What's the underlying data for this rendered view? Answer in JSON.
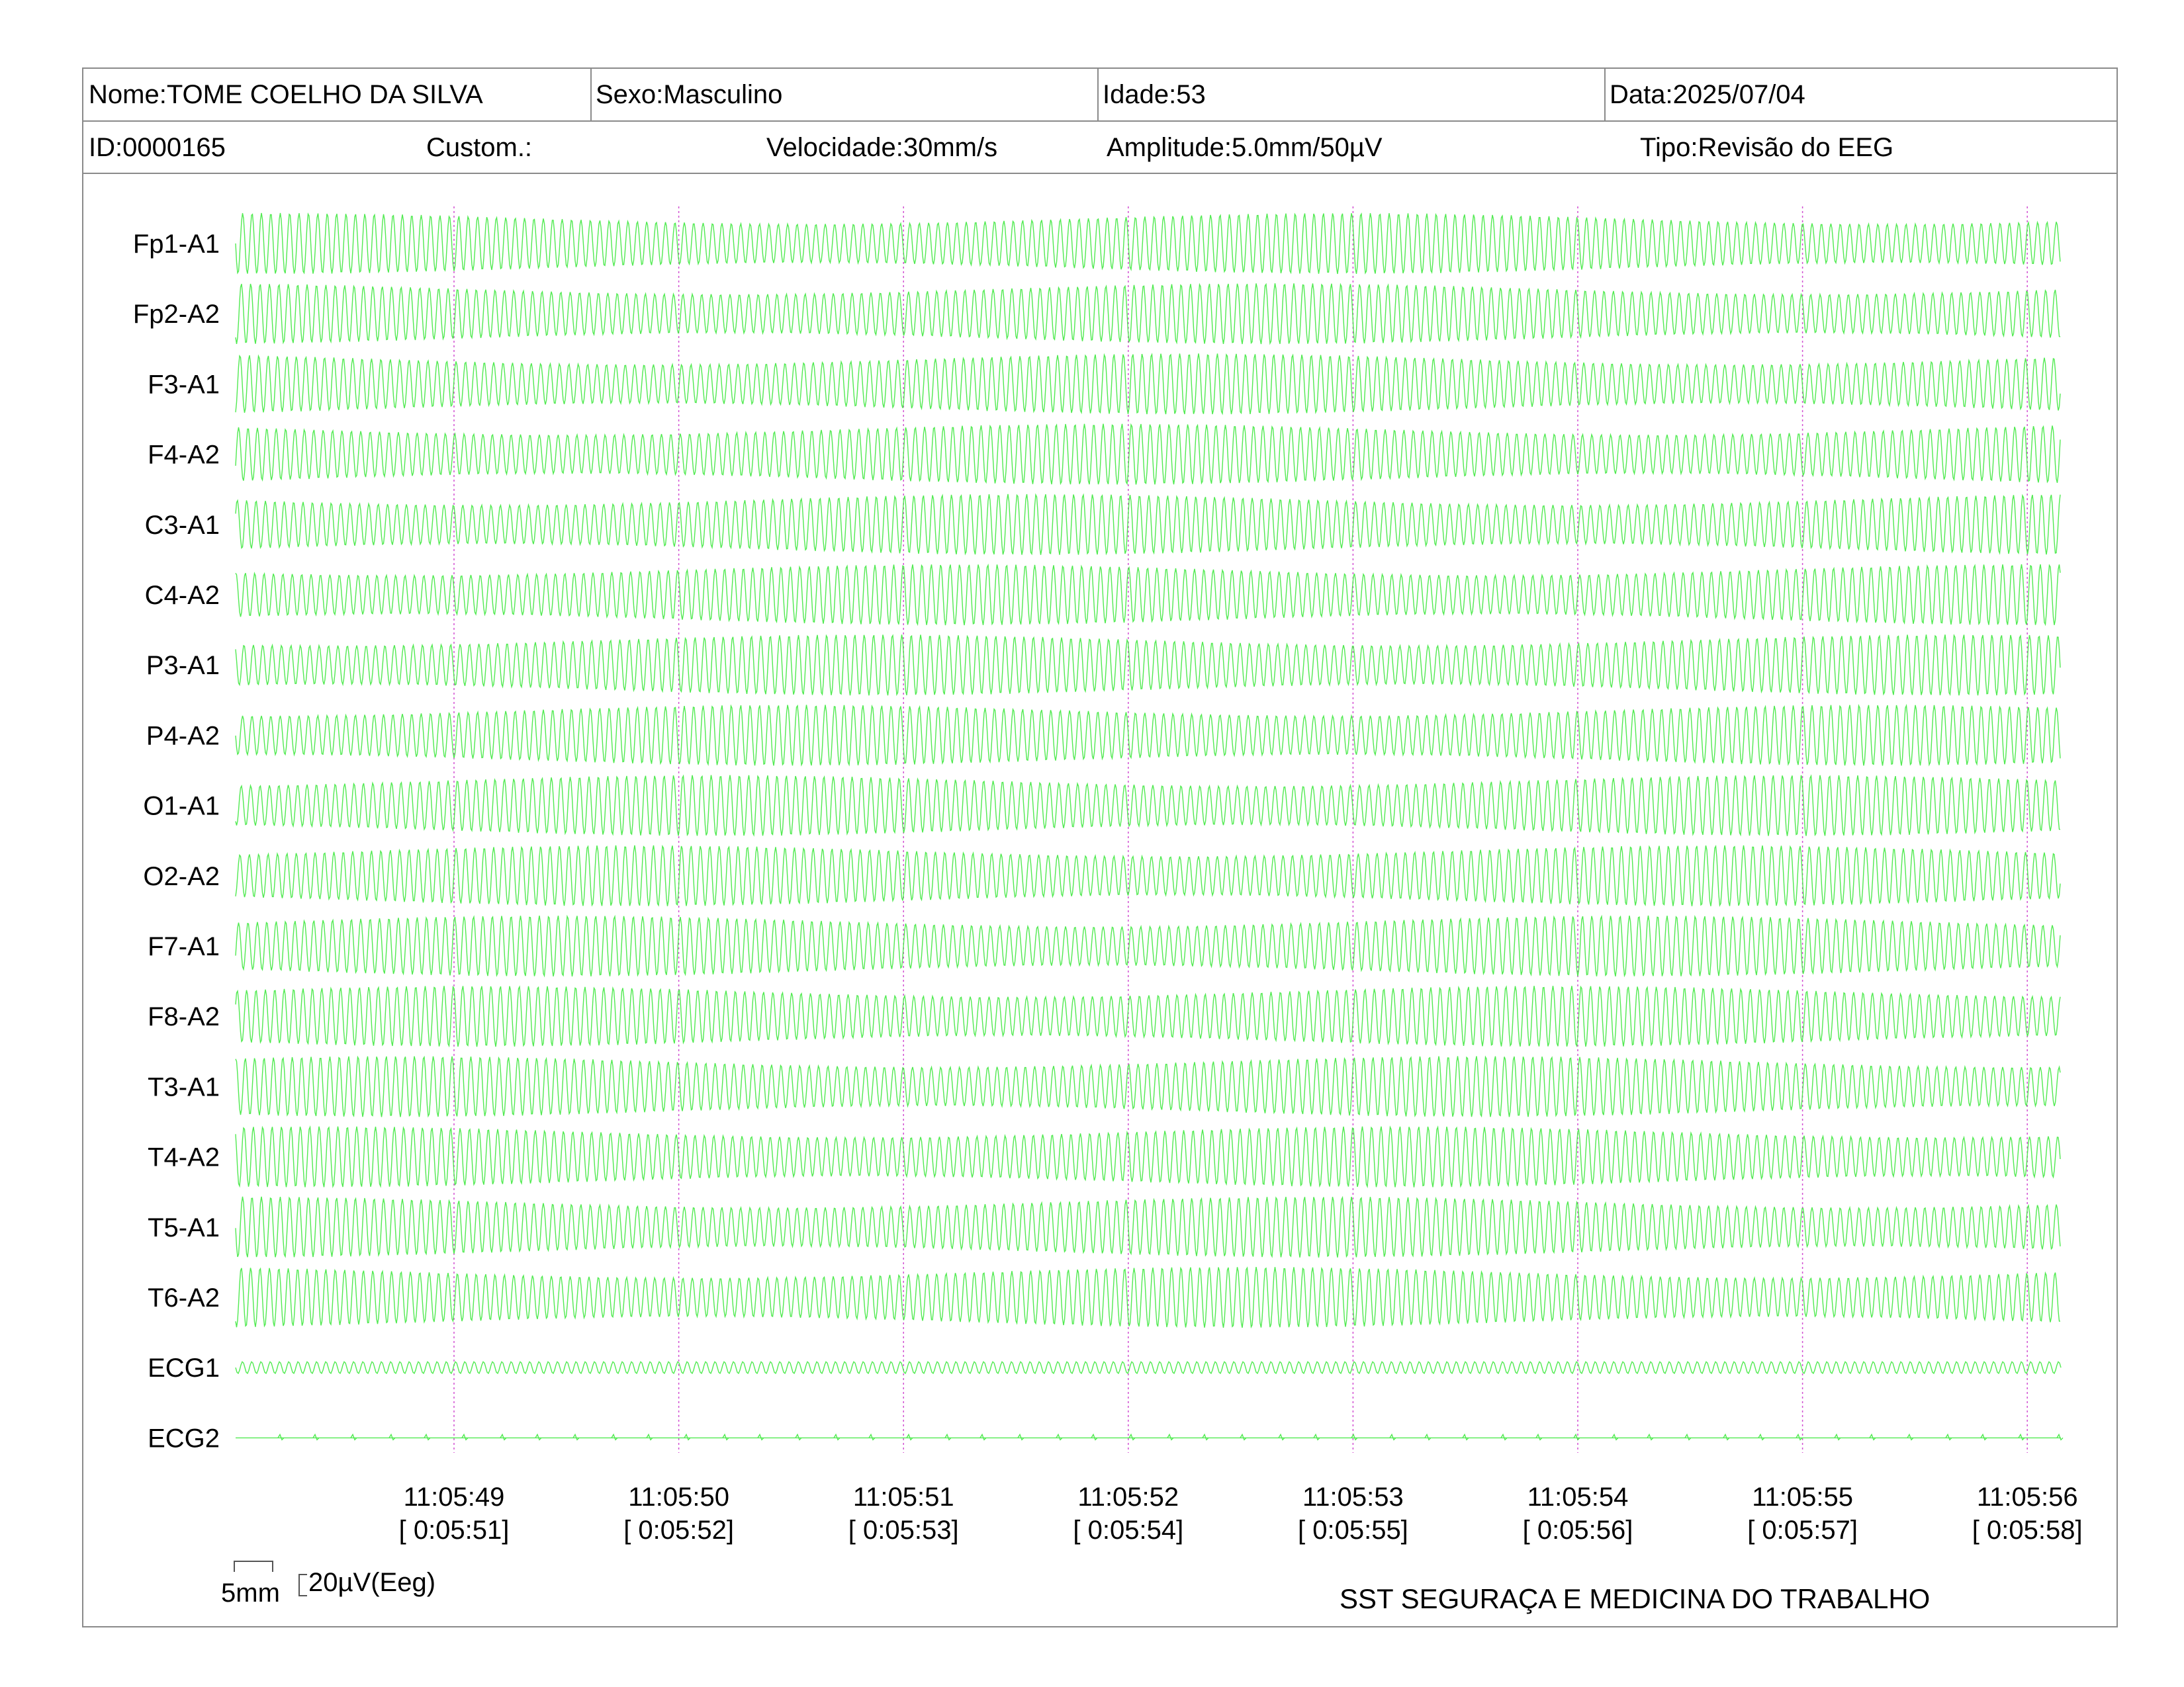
{
  "header": {
    "name": "Nome:TOME COELHO DA SILVA",
    "sex": "Sexo:Masculino",
    "age": "Idade:53",
    "date": "Data:2025/07/04",
    "id": "ID:0000165",
    "custom": "Custom.:",
    "speed": "Velocidade:30mm/s",
    "amplitude": "Amplitude:5.0mm/50µV",
    "type": "Tipo:Revisão do EEG"
  },
  "scale": {
    "time_label": "5mm",
    "amp_label": "20µV(Eeg)"
  },
  "footer": {
    "company": "SST SEGURAÇA E MEDICINA DO TRABALHO"
  },
  "chart_data": {
    "type": "line",
    "title": "",
    "trace_color": "#3ee83e",
    "marker_color": "#d24fd2",
    "channels": [
      "Fp1-A1",
      "Fp2-A2",
      "F3-A1",
      "F4-A2",
      "C3-A1",
      "C4-A2",
      "P3-A1",
      "P4-A2",
      "O1-A1",
      "O2-A2",
      "F7-A1",
      "F8-A2",
      "T3-A1",
      "T4-A2",
      "T5-A1",
      "T6-A2",
      "ECG1",
      "ECG2"
    ],
    "time_ticks": [
      {
        "clock": "11:05:49",
        "elapsed": "[ 0:05:51]"
      },
      {
        "clock": "11:05:50",
        "elapsed": "[ 0:05:52]"
      },
      {
        "clock": "11:05:51",
        "elapsed": "[ 0:05:53]"
      },
      {
        "clock": "11:05:52",
        "elapsed": "[ 0:05:54]"
      },
      {
        "clock": "11:05:53",
        "elapsed": "[ 0:05:55]"
      },
      {
        "clock": "11:05:54",
        "elapsed": "[ 0:05:56]"
      },
      {
        "clock": "11:05:55",
        "elapsed": "[ 0:05:57]"
      },
      {
        "clock": "11:05:56",
        "elapsed": "[ 0:05:58]"
      }
    ],
    "waveform": "dense high-amplitude sinusoidal activity in EEG channels; low-amplitude ECG1; near-flat ECG2 with small spikes"
  }
}
